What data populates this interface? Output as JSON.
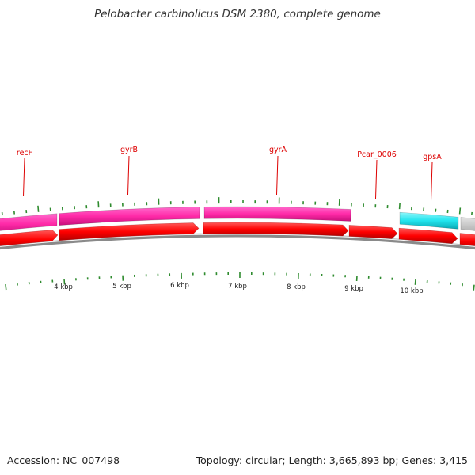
{
  "title": "Pelobacter carbinolicus DSM 2380, complete genome",
  "accession": "Accession: NC_007498",
  "summary": "Topology: circular; Length: 3,665,893 bp; Genes: 3,415",
  "colors": {
    "label": "#dd0000",
    "tick": "#2e8b2e",
    "cds": "#ff0000",
    "magenta_feature": "#ff2aa8",
    "cyan_feature": "#22e5ee",
    "gray_feature": "#c8c8c8",
    "backbone": "#8a8a8a"
  },
  "gene_labels": [
    {
      "text": "recF"
    },
    {
      "text": "gyrB"
    },
    {
      "text": "gyrA"
    },
    {
      "text": "Pcar_0006"
    },
    {
      "text": "gpsA"
    }
  ],
  "ruler_labels": [
    "4 kbp",
    "5 kbp",
    "6 kbp",
    "7 kbp",
    "8 kbp",
    "9 kbp",
    "10 kbp"
  ]
}
